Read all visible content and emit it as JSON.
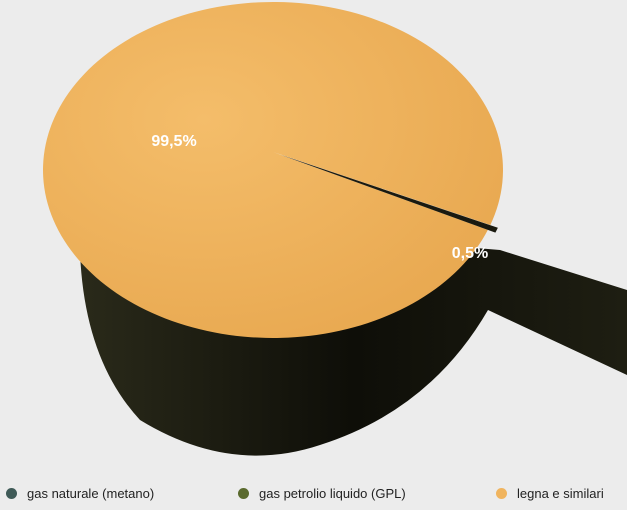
{
  "chart_data": {
    "type": "pie",
    "title": "",
    "legend_position": "bottom",
    "slices": [
      {
        "name": "gas naturale (metano)",
        "value": 0,
        "color": "#3f5a57"
      },
      {
        "name": "gas petrolio liquido (GPL)",
        "value": 0.5,
        "label": "0,5%",
        "color": "#5a6a2e"
      },
      {
        "name": "legna e similari",
        "value": 99.5,
        "label": "99,5%",
        "color": "#f0b45e"
      }
    ]
  }
}
